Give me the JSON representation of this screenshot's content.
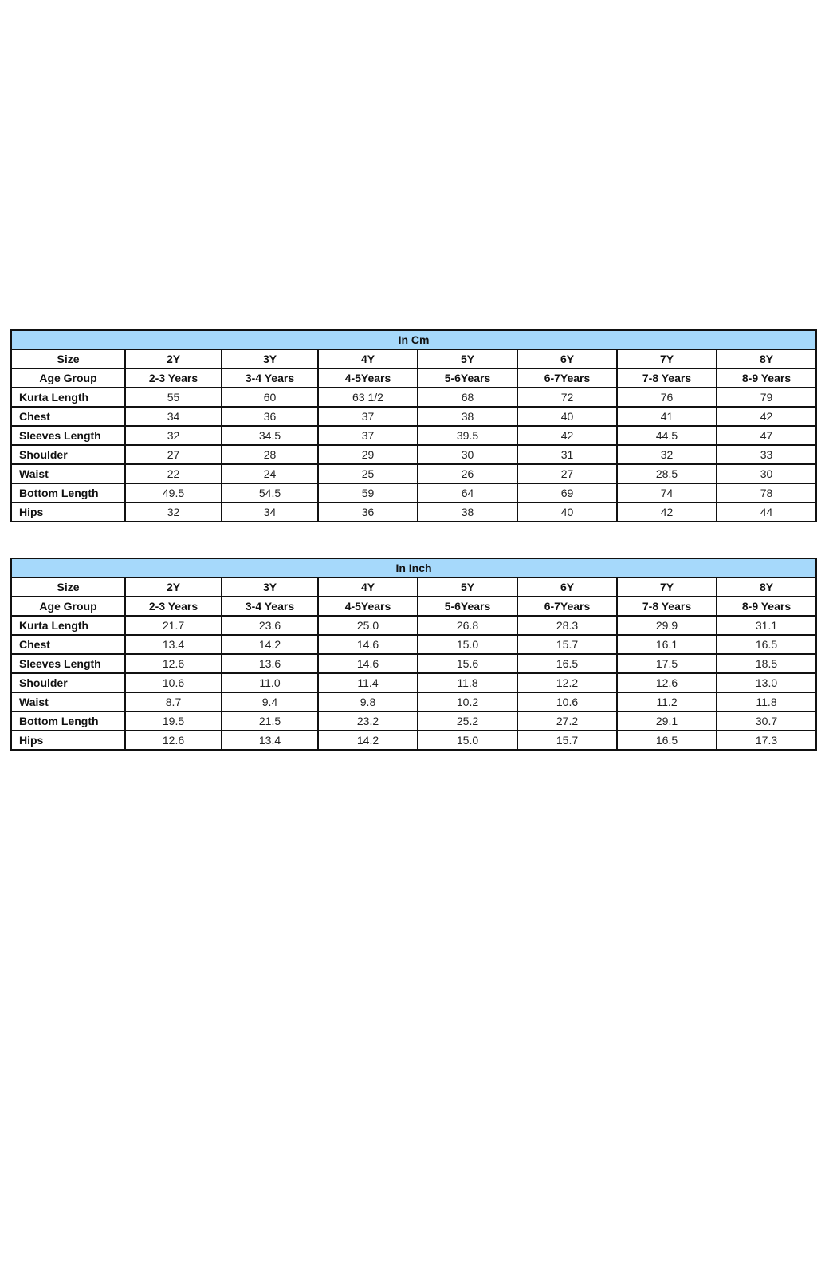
{
  "tables": [
    {
      "title": "In Cm",
      "size_label": "Size",
      "sizes": [
        "2Y",
        "3Y",
        "4Y",
        "5Y",
        "6Y",
        "7Y",
        "8Y"
      ],
      "age_label": "Age Group",
      "ages": [
        "2-3 Years",
        "3-4 Years",
        "4-5Years",
        "5-6Years",
        "6-7Years",
        "7-8 Years",
        "8-9 Years"
      ],
      "rows": [
        {
          "label": "Kurta Length",
          "values": [
            "55",
            "60",
            "63 1/2",
            "68",
            "72",
            "76",
            "79"
          ]
        },
        {
          "label": "Chest",
          "values": [
            "34",
            "36",
            "37",
            "38",
            "40",
            "41",
            "42"
          ]
        },
        {
          "label": "Sleeves Length",
          "values": [
            "32",
            "34.5",
            "37",
            "39.5",
            "42",
            "44.5",
            "47"
          ]
        },
        {
          "label": "Shoulder",
          "values": [
            "27",
            "28",
            "29",
            "30",
            "31",
            "32",
            "33"
          ]
        },
        {
          "label": "Waist",
          "values": [
            "22",
            "24",
            "25",
            "26",
            "27",
            "28.5",
            "30"
          ]
        },
        {
          "label": "Bottom Length",
          "values": [
            "49.5",
            "54.5",
            "59",
            "64",
            "69",
            "74",
            "78"
          ]
        },
        {
          "label": "Hips",
          "values": [
            "32",
            "34",
            "36",
            "38",
            "40",
            "42",
            "44"
          ]
        }
      ]
    },
    {
      "title": "In Inch",
      "size_label": "Size",
      "sizes": [
        "2Y",
        "3Y",
        "4Y",
        "5Y",
        "6Y",
        "7Y",
        "8Y"
      ],
      "age_label": "Age Group",
      "ages": [
        "2-3 Years",
        "3-4 Years",
        "4-5Years",
        "5-6Years",
        "6-7Years",
        "7-8 Years",
        "8-9 Years"
      ],
      "rows": [
        {
          "label": "Kurta Length",
          "values": [
            "21.7",
            "23.6",
            "25.0",
            "26.8",
            "28.3",
            "29.9",
            "31.1"
          ]
        },
        {
          "label": "Chest",
          "values": [
            "13.4",
            "14.2",
            "14.6",
            "15.0",
            "15.7",
            "16.1",
            "16.5"
          ]
        },
        {
          "label": "Sleeves Length",
          "values": [
            "12.6",
            "13.6",
            "14.6",
            "15.6",
            "16.5",
            "17.5",
            "18.5"
          ]
        },
        {
          "label": "Shoulder",
          "values": [
            "10.6",
            "11.0",
            "11.4",
            "11.8",
            "12.2",
            "12.6",
            "13.0"
          ]
        },
        {
          "label": "Waist",
          "values": [
            "8.7",
            "9.4",
            "9.8",
            "10.2",
            "10.6",
            "11.2",
            "11.8"
          ]
        },
        {
          "label": "Bottom Length",
          "values": [
            "19.5",
            "21.5",
            "23.2",
            "25.2",
            "27.2",
            "29.1",
            "30.7"
          ]
        },
        {
          "label": "Hips",
          "values": [
            "12.6",
            "13.4",
            "14.2",
            "15.0",
            "15.7",
            "16.5",
            "17.3"
          ]
        }
      ]
    }
  ],
  "colors": {
    "header_bg": "#a6d9fb",
    "border": "#111111"
  }
}
